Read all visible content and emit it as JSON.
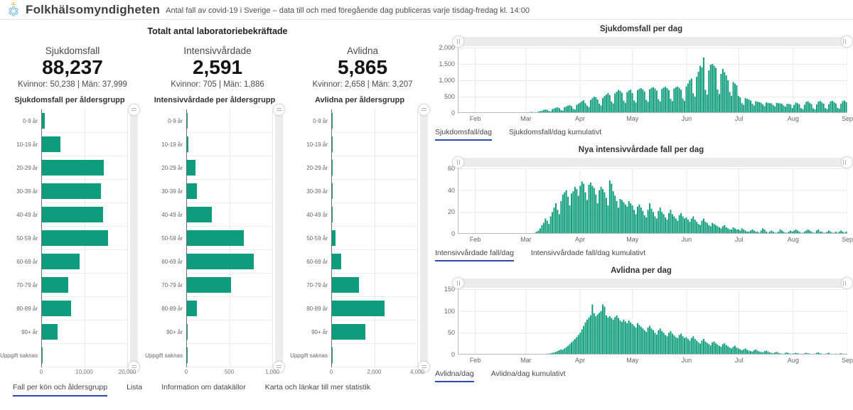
{
  "header": {
    "title": "Folkhälsomyndigheten",
    "subtitle": "Antal fall av covid-19 i Sverige – data till och med föregående dag publiceras varje tisdag-fredag kl. 14:00"
  },
  "colors": {
    "bar_green": "#0E9D7C",
    "tab_active_blue": "#2D49AE",
    "gridline": "#e9e9e9",
    "axis_line": "#b9b9b9"
  },
  "totals": {
    "section_title": "Totalt antal laboratoriebekräftade",
    "items": [
      {
        "label": "Sjukdomsfall",
        "value": "88,237",
        "breakdown": "Kvinnor: 50,238 | Män: 37,999"
      },
      {
        "label": "Intensivvårdade",
        "value": "2,591",
        "breakdown": "Kvinnor: 705 | Män: 1,886"
      },
      {
        "label": "Avlidna",
        "value": "5,865",
        "breakdown": "Kvinnor: 2,658 | Män: 3,207"
      }
    ]
  },
  "bottom_tabs": [
    {
      "label": "Fall per kön och åldersgrupp",
      "active": true
    },
    {
      "label": "Lista",
      "active": false
    },
    {
      "label": "Information om datakällor",
      "active": false
    },
    {
      "label": "Karta och länkar till mer statistik",
      "active": false
    }
  ],
  "chart_data": [
    {
      "type": "bar",
      "orientation": "horizontal",
      "title": "Sjukdomsfall per åldersgrupp",
      "categories": [
        "0-9 år",
        "10-19 år",
        "20-29 år",
        "30-39 år",
        "40-49 år",
        "50-59 år",
        "60-69 år",
        "70-79 år",
        "80-89 år",
        "90+ år",
        "Uppgift saknas"
      ],
      "values": [
        700,
        4400,
        14500,
        13800,
        14400,
        15500,
        8900,
        6200,
        6800,
        3700,
        80
      ],
      "xlim": [
        0,
        20000
      ],
      "xticks": [
        {
          "value": 0,
          "label": "0"
        },
        {
          "value": 10000,
          "label": "10,000"
        },
        {
          "value": 20000,
          "label": "20,000"
        }
      ]
    },
    {
      "type": "bar",
      "orientation": "horizontal",
      "title": "Intensivvårdade per åldersgrupp",
      "categories": [
        "0-9 år",
        "10-19 år",
        "20-29 år",
        "30-39 år",
        "40-49 år",
        "50-59 år",
        "60-69 år",
        "70-79 år",
        "80-89 år",
        "90+ år",
        "Uppgift saknas"
      ],
      "values": [
        5,
        15,
        100,
        120,
        295,
        665,
        780,
        515,
        115,
        10,
        1
      ],
      "xlim": [
        0,
        1000
      ],
      "xticks": [
        {
          "value": 0,
          "label": "0"
        },
        {
          "value": 500,
          "label": "500"
        },
        {
          "value": 1000,
          "label": "1,000"
        }
      ]
    },
    {
      "type": "bar",
      "orientation": "horizontal",
      "title": "Avlidna per åldersgrupp",
      "categories": [
        "0-9 år",
        "10-19 år",
        "20-29 år",
        "30-39 år",
        "40-49 år",
        "50-59 år",
        "60-69 år",
        "70-79 år",
        "80-89 år",
        "90+ år",
        "Uppgift saknas"
      ],
      "values": [
        1,
        1,
        8,
        15,
        40,
        150,
        420,
        1270,
        2450,
        1550,
        2
      ],
      "xlim": [
        0,
        4000
      ],
      "xticks": [
        {
          "value": 0,
          "label": "0"
        },
        {
          "value": 2000,
          "label": "2,000"
        },
        {
          "value": 4000,
          "label": "4,000"
        }
      ]
    },
    {
      "type": "bar",
      "title": "Sjukdomsfall per dag",
      "x_start": "22 jan",
      "x_end": "1 sep",
      "x_month_labels": [
        "Feb",
        "Mar",
        "Apr",
        "May",
        "Jun",
        "Jul",
        "Aug",
        "Sep"
      ],
      "month_day_index": [
        10,
        39,
        70,
        100,
        131,
        161,
        192,
        223
      ],
      "ylim": [
        0,
        2000
      ],
      "ytick_labels": [
        "0",
        "500",
        "1,000",
        "1,500",
        "2,000"
      ],
      "tabs": [
        {
          "label": "Sjukdomsfall/dag",
          "active": true
        },
        {
          "label": "Sjukdomsfall/dag kumulativt",
          "active": false
        }
      ],
      "values": [
        0,
        0,
        0,
        0,
        0,
        0,
        0,
        1,
        0,
        0,
        0,
        0,
        0,
        1,
        0,
        0,
        0,
        0,
        0,
        0,
        0,
        0,
        0,
        0,
        0,
        1,
        0,
        0,
        0,
        0,
        0,
        0,
        0,
        0,
        1,
        2,
        5,
        7,
        11,
        14,
        19,
        24,
        32,
        28,
        18,
        16,
        42,
        56,
        72,
        92,
        108,
        96,
        62,
        52,
        118,
        142,
        158,
        172,
        148,
        92,
        74,
        178,
        202,
        224,
        242,
        208,
        132,
        104,
        248,
        282,
        318,
        362,
        388,
        298,
        222,
        182,
        398,
        452,
        498,
        478,
        418,
        282,
        232,
        458,
        518,
        562,
        608,
        548,
        352,
        292,
        598,
        648,
        702,
        678,
        618,
        382,
        312,
        638,
        692,
        712,
        608,
        382,
        322,
        698,
        738,
        758,
        722,
        658,
        402,
        342,
        728,
        768,
        788,
        748,
        688,
        422,
        352,
        738,
        778,
        798,
        758,
        698,
        432,
        362,
        748,
        788,
        808,
        768,
        708,
        442,
        372,
        812,
        902,
        1005,
        1052,
        602,
        502,
        1105,
        1258,
        1442,
        1395,
        1698,
        708,
        562,
        1302,
        1478,
        1495,
        1448,
        1382,
        722,
        582,
        1195,
        1352,
        1248,
        1148,
        1002,
        642,
        522,
        948,
        898,
        848,
        522,
        478,
        302,
        252,
        458,
        432,
        412,
        382,
        282,
        232,
        362,
        342,
        332,
        312,
        262,
        212,
        322,
        312,
        302,
        292,
        242,
        202,
        312,
        302,
        292,
        282,
        232,
        192,
        282,
        272,
        262,
        152,
        248,
        322,
        298,
        268,
        148,
        118,
        252,
        342,
        358,
        312,
        272,
        142,
        112,
        262,
        348,
        368,
        322,
        282,
        152,
        122,
        272,
        352,
        372,
        332,
        292,
        162,
        132,
        282,
        362,
        382,
        332
      ]
    },
    {
      "type": "bar",
      "title": "Nya intensivvårdade fall per dag",
      "x_start": "22 jan",
      "x_end": "1 sep",
      "x_month_labels": [
        "Feb",
        "Mar",
        "Apr",
        "May",
        "Jun",
        "Jul",
        "Aug",
        "Sep"
      ],
      "month_day_index": [
        10,
        39,
        70,
        100,
        131,
        161,
        192,
        223
      ],
      "ylim": [
        0,
        60
      ],
      "ytick_labels": [
        "0",
        "20",
        "40",
        "60"
      ],
      "tabs": [
        {
          "label": "Intensivvårdade fall/dag",
          "active": true
        },
        {
          "label": "Intensivvårdade fall/dag kumulativt",
          "active": false
        }
      ],
      "values": [
        0,
        0,
        0,
        0,
        0,
        0,
        0,
        0,
        0,
        0,
        0,
        0,
        0,
        0,
        0,
        0,
        0,
        0,
        0,
        0,
        0,
        0,
        0,
        0,
        0,
        0,
        0,
        0,
        0,
        0,
        0,
        0,
        0,
        0,
        0,
        0,
        0,
        0,
        0,
        0,
        0,
        0,
        0,
        0,
        1,
        2,
        3,
        5,
        8,
        10,
        14,
        12,
        9,
        16,
        20,
        24,
        28,
        22,
        18,
        30,
        36,
        38,
        40,
        34,
        26,
        37,
        39,
        43,
        41,
        35,
        44,
        48,
        46,
        38,
        31,
        45,
        47,
        44,
        42,
        36,
        28,
        40,
        43,
        41,
        38,
        33,
        26,
        49,
        46,
        39,
        35,
        30,
        24,
        32,
        31,
        29,
        27,
        25,
        30,
        28,
        26,
        22,
        18,
        25,
        27,
        24,
        21,
        17,
        15,
        22,
        28,
        23,
        20,
        16,
        14,
        21,
        24,
        20,
        18,
        15,
        13,
        19,
        22,
        18,
        16,
        14,
        12,
        17,
        19,
        16,
        14,
        15,
        13,
        11,
        14,
        16,
        13,
        11,
        9,
        8,
        12,
        14,
        11,
        10,
        8,
        7,
        10,
        9,
        8,
        7,
        6,
        5,
        7,
        8,
        6,
        5,
        4,
        4,
        6,
        5,
        4,
        4,
        3,
        5,
        4,
        3,
        2,
        2,
        3,
        4,
        3,
        2,
        2,
        1,
        3,
        5,
        4,
        2,
        1,
        2,
        3,
        2,
        1,
        1,
        2,
        4,
        3,
        2,
        1,
        1,
        2,
        3,
        2,
        3,
        4,
        3,
        2,
        1,
        1,
        2,
        3,
        4,
        3,
        2,
        1,
        1,
        3,
        4,
        2,
        2,
        1,
        1,
        2,
        3,
        2,
        1,
        1,
        2,
        1,
        2,
        3,
        2,
        1,
        2
      ]
    },
    {
      "type": "bar",
      "title": "Avlidna per dag",
      "x_start": "22 jan",
      "x_end": "1 sep",
      "x_month_labels": [
        "Feb",
        "Mar",
        "Apr",
        "May",
        "Jun",
        "Jul",
        "Aug",
        "Sep"
      ],
      "month_day_index": [
        10,
        39,
        70,
        100,
        131,
        161,
        192,
        223
      ],
      "ylim": [
        0,
        150
      ],
      "ytick_labels": [
        "0",
        "50",
        "100",
        "150"
      ],
      "tabs": [
        {
          "label": "Avlidna/dag",
          "active": true
        },
        {
          "label": "Avlidna/dag kumulativt",
          "active": false
        }
      ],
      "values": [
        0,
        0,
        0,
        0,
        0,
        0,
        0,
        0,
        0,
        0,
        0,
        0,
        0,
        0,
        0,
        0,
        0,
        0,
        0,
        0,
        0,
        0,
        0,
        0,
        0,
        0,
        0,
        0,
        0,
        0,
        0,
        0,
        0,
        0,
        0,
        0,
        0,
        0,
        0,
        0,
        0,
        0,
        0,
        0,
        0,
        0,
        0,
        0,
        0,
        1,
        1,
        2,
        2,
        3,
        4,
        5,
        6,
        8,
        10,
        12,
        11,
        14,
        17,
        20,
        24,
        28,
        32,
        36,
        40,
        45,
        50,
        58,
        66,
        74,
        80,
        85,
        90,
        115,
        95,
        88,
        92,
        96,
        100,
        115,
        110,
        90,
        85,
        88,
        84,
        80,
        86,
        90,
        84,
        78,
        75,
        80,
        76,
        72,
        78,
        74,
        70,
        66,
        62,
        72,
        68,
        64,
        60,
        56,
        52,
        62,
        66,
        60,
        56,
        50,
        46,
        56,
        60,
        54,
        50,
        45,
        42,
        50,
        54,
        48,
        44,
        40,
        38,
        45,
        48,
        42,
        38,
        40,
        36,
        32,
        38,
        42,
        36,
        32,
        28,
        25,
        32,
        36,
        30,
        27,
        24,
        21,
        28,
        30,
        26,
        23,
        20,
        18,
        24,
        26,
        22,
        19,
        16,
        14,
        18,
        20,
        16,
        14,
        12,
        10,
        12,
        14,
        11,
        9,
        8,
        7,
        10,
        12,
        9,
        7,
        6,
        5,
        8,
        9,
        7,
        5,
        4,
        3,
        5,
        6,
        4,
        3,
        2,
        2,
        4,
        5,
        3,
        2,
        2,
        3,
        4,
        3,
        2,
        1,
        1,
        3,
        4,
        3,
        2,
        1,
        1,
        2,
        4,
        5,
        3,
        2,
        1,
        1,
        3,
        4,
        2,
        1,
        1,
        2,
        1,
        2,
        3,
        2,
        1,
        2
      ]
    }
  ]
}
